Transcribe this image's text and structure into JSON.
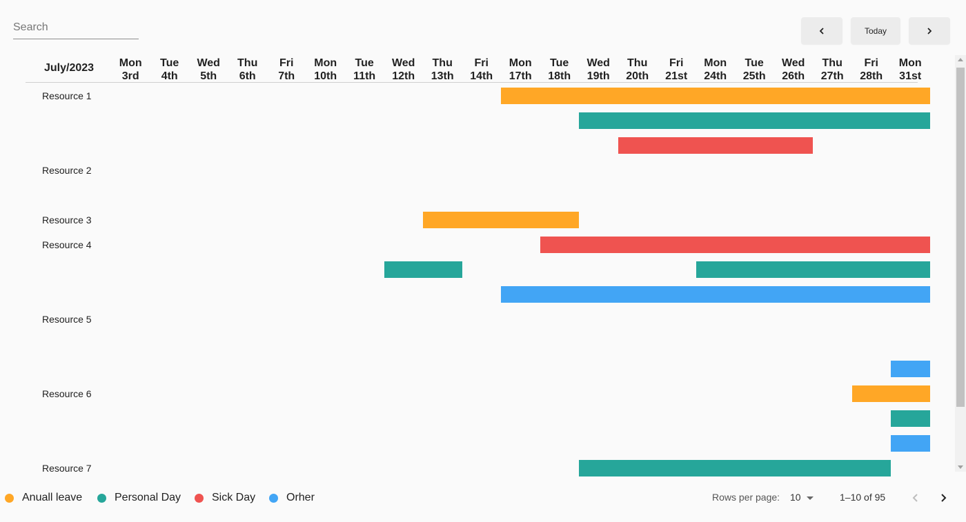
{
  "search": {
    "placeholder": "Search"
  },
  "nav": {
    "prev_icon": "chevron-left-icon",
    "today_label": "Today",
    "next_icon": "chevron-right-icon"
  },
  "month_label": "July/2023",
  "days": [
    {
      "name": "Mon",
      "num": "3rd"
    },
    {
      "name": "Tue",
      "num": "4th"
    },
    {
      "name": "Wed",
      "num": "5th"
    },
    {
      "name": "Thu",
      "num": "6th"
    },
    {
      "name": "Fri",
      "num": "7th"
    },
    {
      "name": "Mon",
      "num": "10th"
    },
    {
      "name": "Tue",
      "num": "11th"
    },
    {
      "name": "Wed",
      "num": "12th"
    },
    {
      "name": "Thu",
      "num": "13th"
    },
    {
      "name": "Fri",
      "num": "14th"
    },
    {
      "name": "Mon",
      "num": "17th"
    },
    {
      "name": "Tue",
      "num": "18th"
    },
    {
      "name": "Wed",
      "num": "19th"
    },
    {
      "name": "Thu",
      "num": "20th"
    },
    {
      "name": "Fri",
      "num": "21st"
    },
    {
      "name": "Mon",
      "num": "24th"
    },
    {
      "name": "Tue",
      "num": "25th"
    },
    {
      "name": "Wed",
      "num": "26th"
    },
    {
      "name": "Thu",
      "num": "27th"
    },
    {
      "name": "Fri",
      "num": "28th"
    },
    {
      "name": "Mon",
      "num": "31st"
    }
  ],
  "leave_types": {
    "annual": {
      "label": "Anuall leave",
      "color": "#ffa726"
    },
    "personal": {
      "label": "Personal Day",
      "color": "#26a69a"
    },
    "sick": {
      "label": "Sick Day",
      "color": "#ef5350"
    },
    "other": {
      "label": "Orher",
      "color": "#42a5f5"
    }
  },
  "resources": [
    {
      "name": "Resource 1",
      "lanes": 3,
      "bookings": [
        {
          "type": "annual",
          "start": "Mon 17th",
          "end": "Mon 31st",
          "lane": 0
        },
        {
          "type": "personal",
          "start": "Wed 19th",
          "end": "Mon 31st",
          "lane": 1
        },
        {
          "type": "sick",
          "start": "Thu 20th",
          "end": "Wed 26th",
          "lane": 2
        }
      ]
    },
    {
      "name": "Resource 2",
      "lanes": 2,
      "bookings": []
    },
    {
      "name": "Resource 3",
      "lanes": 1,
      "bookings": [
        {
          "type": "annual",
          "start": "Thu 13th",
          "end": "Tue 18th",
          "lane": 0
        }
      ]
    },
    {
      "name": "Resource 4",
      "lanes": 3,
      "bookings": [
        {
          "type": "sick",
          "start": "Tue 18th",
          "end": "Mon 31st",
          "lane": 0
        },
        {
          "type": "personal",
          "start": "Wed 12th",
          "end": "Thu 13th",
          "lane": 1
        },
        {
          "type": "personal",
          "start": "Mon 24th",
          "end": "Mon 31st",
          "lane": 1
        },
        {
          "type": "other",
          "start": "Mon 17th",
          "end": "Mon 31st",
          "lane": 2
        }
      ]
    },
    {
      "name": "Resource 5",
      "lanes": 3,
      "bookings": [
        {
          "type": "other",
          "start": "Mon 31st",
          "end": "Mon 31st",
          "lane": 2
        }
      ]
    },
    {
      "name": "Resource 6",
      "lanes": 3,
      "bookings": [
        {
          "type": "annual",
          "start": "Fri 28th",
          "end": "Mon 31st",
          "lane": 0
        },
        {
          "type": "personal",
          "start": "Mon 31st",
          "end": "Mon 31st",
          "lane": 1
        },
        {
          "type": "other",
          "start": "Mon 31st",
          "end": "Mon 31st",
          "lane": 2
        }
      ]
    },
    {
      "name": "Resource 7",
      "lanes": 1,
      "bookings": [
        {
          "type": "personal",
          "start": "Wed 19th",
          "end": "Fri 28th",
          "lane": 0
        }
      ]
    }
  ],
  "footer": {
    "rows_label": "Rows per page:",
    "rows_value": "10",
    "range": "1–10 of 95",
    "prev_icon": "chevron-left-icon",
    "next_icon": "chevron-right-icon"
  }
}
